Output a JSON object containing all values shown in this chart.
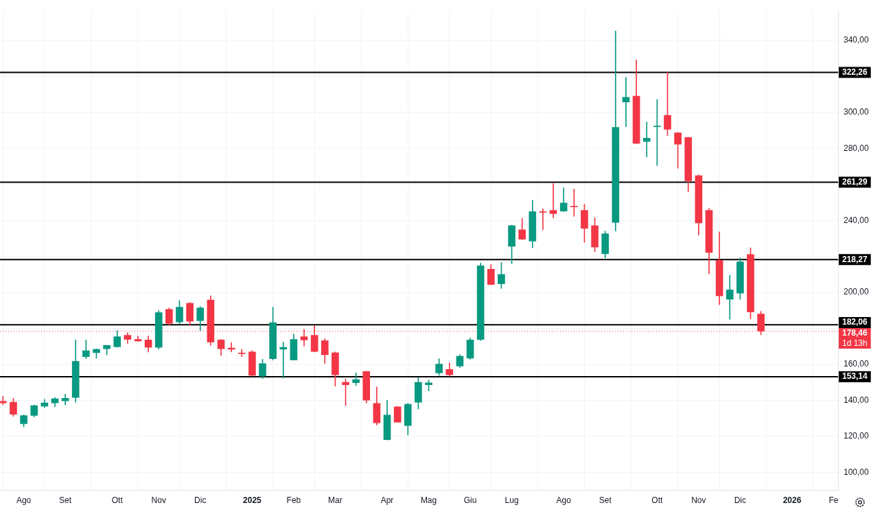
{
  "chart_data": {
    "type": "candlestick",
    "x": [
      "2024-07-22",
      "2024-07-29",
      "2024-08-05",
      "2024-08-12",
      "2024-08-19",
      "2024-08-26",
      "2024-09-02",
      "2024-09-09",
      "2024-09-16",
      "2024-09-23",
      "2024-09-30",
      "2024-10-07",
      "2024-10-14",
      "2024-10-21",
      "2024-10-28",
      "2024-11-04",
      "2024-11-11",
      "2024-11-18",
      "2024-11-25",
      "2024-12-02",
      "2024-12-09",
      "2024-12-16",
      "2024-12-23",
      "2024-12-30",
      "2025-01-06",
      "2025-01-13",
      "2025-01-20",
      "2025-01-27",
      "2025-02-03",
      "2025-02-10",
      "2025-02-17",
      "2025-02-24",
      "2025-03-03",
      "2025-03-10",
      "2025-03-17",
      "2025-03-24",
      "2025-03-31",
      "2025-04-07",
      "2025-04-14",
      "2025-04-21",
      "2025-04-28",
      "2025-05-05",
      "2025-05-12",
      "2025-05-19",
      "2025-05-26",
      "2025-06-02",
      "2025-06-09",
      "2025-06-16",
      "2025-06-23",
      "2025-06-30",
      "2025-07-07",
      "2025-07-14",
      "2025-07-21",
      "2025-07-28",
      "2025-08-04",
      "2025-08-11",
      "2025-08-18",
      "2025-08-25",
      "2025-09-01",
      "2025-09-08",
      "2025-09-15",
      "2025-09-22",
      "2025-09-29",
      "2025-10-06",
      "2025-10-13",
      "2025-10-20",
      "2025-10-27",
      "2025-11-03",
      "2025-11-10",
      "2025-11-17",
      "2025-11-24",
      "2025-12-01",
      "2025-12-08",
      "2025-12-15"
    ],
    "ohlc": [
      [
        139.5,
        142.3,
        137.5,
        138.6
      ],
      [
        139.0,
        141.2,
        131.2,
        132.3
      ],
      [
        127.1,
        132.0,
        125.3,
        131.6
      ],
      [
        131.6,
        137.5,
        130.8,
        137.1
      ],
      [
        136.8,
        140.5,
        136.0,
        138.6
      ],
      [
        138.6,
        141.6,
        136.4,
        140.9
      ],
      [
        139.7,
        143.5,
        137.5,
        141.2
      ],
      [
        141.6,
        173.6,
        139.0,
        161.7
      ],
      [
        164.3,
        173.6,
        163.2,
        167.6
      ],
      [
        166.5,
        168.7,
        163.5,
        168.4
      ],
      [
        168.7,
        170.6,
        165.4,
        170.6
      ],
      [
        169.8,
        178.8,
        169.5,
        175.4
      ],
      [
        176.2,
        177.6,
        171.7,
        173.9
      ],
      [
        173.9,
        175.8,
        172.8,
        173.0
      ],
      [
        173.6,
        175.8,
        166.9,
        169.5
      ],
      [
        169.5,
        189.9,
        168.4,
        188.8
      ],
      [
        190.6,
        191.4,
        181.7,
        182.8
      ],
      [
        183.6,
        195.5,
        182.5,
        191.8
      ],
      [
        194.0,
        194.4,
        181.7,
        184.0
      ],
      [
        184.3,
        192.1,
        178.8,
        191.4
      ],
      [
        195.8,
        198.1,
        170.6,
        172.4
      ],
      [
        173.6,
        173.9,
        165.0,
        168.7
      ],
      [
        169.1,
        172.1,
        166.9,
        168.4
      ],
      [
        166.3,
        168.4,
        164.3,
        166.0
      ],
      [
        166.9,
        167.6,
        153.5,
        153.9
      ],
      [
        153.5,
        162.8,
        152.0,
        160.5
      ],
      [
        163.2,
        191.8,
        162.4,
        183.2
      ],
      [
        168.4,
        172.4,
        152.4,
        169.5
      ],
      [
        162.4,
        176.9,
        162.4,
        173.9
      ],
      [
        175.4,
        179.5,
        170.2,
        173.6
      ],
      [
        176.2,
        181.7,
        166.9,
        167.2
      ],
      [
        173.2,
        174.3,
        160.5,
        165.4
      ],
      [
        166.5,
        166.9,
        147.9,
        154.2
      ],
      [
        150.1,
        152.0,
        137.1,
        148.7
      ],
      [
        149.8,
        155.3,
        148.3,
        151.6
      ],
      [
        156.1,
        156.3,
        138.6,
        140.1
      ],
      [
        138.3,
        147.5,
        126.4,
        127.5
      ],
      [
        118.2,
        140.1,
        118.0,
        131.9
      ],
      [
        136.4,
        136.6,
        127.7,
        127.9
      ],
      [
        126.0,
        138.3,
        120.8,
        137.9
      ],
      [
        139.0,
        152.7,
        135.3,
        150.1
      ],
      [
        148.7,
        151.3,
        145.3,
        149.8
      ],
      [
        155.3,
        163.2,
        153.9,
        160.2
      ],
      [
        157.2,
        160.9,
        153.5,
        154.2
      ],
      [
        159.1,
        165.4,
        158.3,
        164.6
      ],
      [
        163.5,
        174.7,
        162.8,
        173.6
      ],
      [
        173.9,
        216.3,
        173.2,
        214.8
      ],
      [
        212.9,
        215.5,
        204.2,
        204.4
      ],
      [
        204.8,
        216.6,
        202.2,
        210.0
      ],
      [
        225.6,
        237.4,
        215.9,
        237.1
      ],
      [
        234.8,
        241.2,
        229.3,
        229.6
      ],
      [
        228.5,
        251.2,
        224.8,
        244.9
      ],
      [
        244.9,
        246.4,
        234.8,
        244.5
      ],
      [
        245.6,
        260.5,
        241.5,
        243.8
      ],
      [
        245.2,
        258.2,
        245.0,
        249.7
      ],
      [
        247.9,
        257.5,
        242.3,
        247.6
      ],
      [
        245.6,
        249.0,
        227.8,
        235.6
      ],
      [
        237.1,
        241.5,
        222.6,
        225.2
      ],
      [
        221.5,
        234.1,
        219.2,
        232.6
      ],
      [
        238.9,
        345.2,
        234.1,
        291.7
      ],
      [
        305.8,
        319.5,
        292.1,
        308.4
      ],
      [
        309.1,
        329.2,
        282.6,
        282.8
      ],
      [
        283.9,
        294.7,
        275.3,
        285.7
      ],
      [
        292.1,
        307.3,
        270.5,
        292.4
      ],
      [
        298.4,
        322.5,
        287.2,
        290.6
      ],
      [
        288.7,
        288.9,
        269.0,
        282.4
      ],
      [
        286.1,
        286.3,
        256.0,
        262.0
      ],
      [
        264.9,
        265.3,
        231.9,
        238.6
      ],
      [
        245.6,
        246.7,
        210.3,
        222.2
      ],
      [
        217.8,
        233.7,
        193.2,
        198.1
      ],
      [
        196.2,
        209.6,
        185.1,
        201.4
      ],
      [
        199.6,
        219.2,
        196.2,
        217.0
      ],
      [
        221.1,
        224.8,
        185.4,
        189.2
      ],
      [
        188.0,
        189.5,
        176.5,
        178.46
      ]
    ],
    "colors": [
      "#f23645",
      "#f23645",
      "#089981",
      "#089981",
      "#089981",
      "#089981",
      "#089981",
      "#089981",
      "#089981",
      "#089981",
      "#089981",
      "#089981",
      "#f23645",
      "#f23645",
      "#f23645",
      "#089981",
      "#f23645",
      "#089981",
      "#f23645",
      "#089981",
      "#f23645",
      "#f23645",
      "#f23645",
      "#f23645",
      "#f23645",
      "#089981",
      "#089981",
      "#089981",
      "#089981",
      "#f23645",
      "#f23645",
      "#f23645",
      "#f23645",
      "#f23645",
      "#089981",
      "#f23645",
      "#f23645",
      "#089981",
      "#f23645",
      "#089981",
      "#089981",
      "#089981",
      "#089981",
      "#f23645",
      "#089981",
      "#089981",
      "#089981",
      "#f23645",
      "#089981",
      "#089981",
      "#f23645",
      "#089981",
      "#f23645",
      "#f23645",
      "#089981",
      "#f23645",
      "#f23645",
      "#f23645",
      "#089981",
      "#089981",
      "#089981",
      "#f23645",
      "#089981",
      "#089981",
      "#f23645",
      "#f23645",
      "#f23645",
      "#f23645",
      "#f23645",
      "#f23645",
      "#089981",
      "#089981",
      "#f23645",
      "#f23645"
    ],
    "xlim": [
      "2024-07-20",
      "2026-02-05"
    ],
    "xticks": [
      {
        "value": "2024-08-05",
        "label": "Ago"
      },
      {
        "value": "2024-09-02",
        "label": "Set"
      },
      {
        "value": "2024-10-07",
        "label": "Ott"
      },
      {
        "value": "2024-11-04",
        "label": "Nov"
      },
      {
        "value": "2024-12-02",
        "label": "Dic"
      },
      {
        "value": "2025-01-06",
        "label": "2025"
      },
      {
        "value": "2025-02-03",
        "label": "Feb"
      },
      {
        "value": "2025-03-03",
        "label": "Mar"
      },
      {
        "value": "2025-04-07",
        "label": "Apr"
      },
      {
        "value": "2025-05-05",
        "label": "Mag"
      },
      {
        "value": "2025-06-02",
        "label": "Giu"
      },
      {
        "value": "2025-06-30",
        "label": "Lug"
      },
      {
        "value": "2025-08-04",
        "label": "Ago"
      },
      {
        "value": "2025-09-01",
        "label": "Set"
      },
      {
        "value": "2025-10-06",
        "label": "Ott"
      },
      {
        "value": "2025-11-03",
        "label": "Nov"
      },
      {
        "value": "2025-12-01",
        "label": "Dic"
      },
      {
        "value": "2026-01-05",
        "label": "2026"
      },
      {
        "value": "2026-02-02",
        "label": "Fe"
      }
    ],
    "ylim": [
      90,
      356.7
    ],
    "yticks": [
      {
        "value": 100,
        "label": "100,00"
      },
      {
        "value": 120,
        "label": "120,00"
      },
      {
        "value": 140,
        "label": "140,00"
      },
      {
        "value": 160,
        "label": "160,00"
      },
      {
        "value": 180,
        "label": null
      },
      {
        "value": 200,
        "label": "200,00"
      },
      {
        "value": 220,
        "label": null
      },
      {
        "value": 240,
        "label": "240,00"
      },
      {
        "value": 260,
        "label": null
      },
      {
        "value": 280,
        "label": "280,00"
      },
      {
        "value": 300,
        "label": "300,00"
      },
      {
        "value": 320,
        "label": null
      },
      {
        "value": 340,
        "label": "340,00"
      }
    ],
    "grid": true,
    "ref_lines": [
      {
        "axis": "y",
        "value": 322.26,
        "label": "322,26",
        "color": "#000000"
      },
      {
        "axis": "y",
        "value": 261.29,
        "label": "261,29",
        "color": "#000000"
      },
      {
        "axis": "y",
        "value": 218.27,
        "label": "218,27",
        "color": "#000000"
      },
      {
        "axis": "y",
        "value": 182.06,
        "label": "182,06",
        "color": "#000000"
      },
      {
        "axis": "y",
        "value": 153.14,
        "label": "153,14",
        "color": "#000000"
      },
      {
        "axis": "y",
        "value": 178.46,
        "label": "178,46",
        "color": "#f23645",
        "line_style": "dotted"
      }
    ],
    "annotations": [
      "1d 13h"
    ]
  }
}
